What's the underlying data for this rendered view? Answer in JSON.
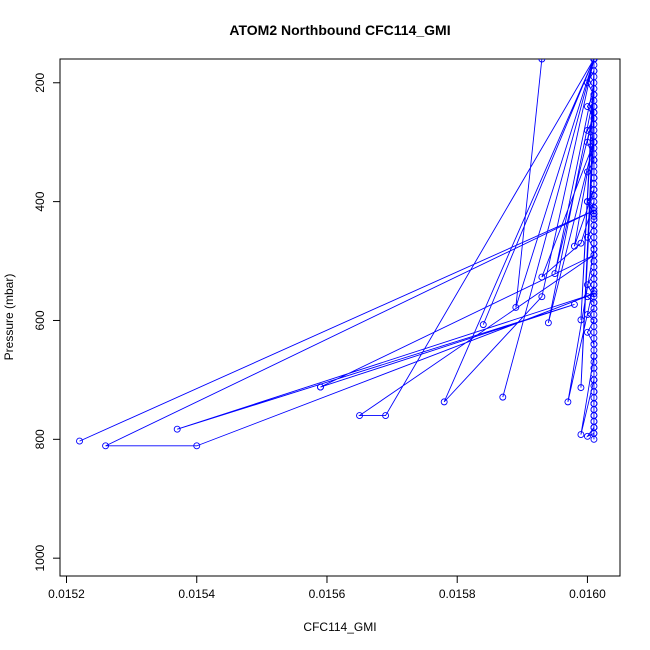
{
  "chart_data": {
    "type": "line",
    "title": "ATOM2 Northbound CFC114_GMI",
    "xlabel": "CFC114_GMI",
    "ylabel": "Pressure (mbar)",
    "xlim": [
      0.01519,
      0.01605
    ],
    "ylim": [
      1030,
      160
    ],
    "y_reversed": true,
    "grid": false,
    "legend": "none",
    "series_color": "#0000ff",
    "marker": "open-circle",
    "xticks": [
      0.0152,
      0.0154,
      0.0156,
      0.0158,
      0.016
    ],
    "xtick_labels": [
      "0.0152",
      "0.0154",
      "0.0156",
      "0.0158",
      "0.0160"
    ],
    "yticks": [
      200,
      400,
      600,
      800,
      1000
    ],
    "ytick_labels": [
      "200",
      "400",
      "600",
      "800",
      "1000"
    ],
    "series": [
      {
        "x": [
          0.01601,
          0.01601,
          0.016,
          0.01601,
          0.01601,
          0.01601,
          0.016,
          0.01601,
          0.01601,
          0.01601,
          0.01601,
          0.01601,
          0.01601,
          0.01601,
          0.01601,
          0.01601,
          0.01601,
          0.01601,
          0.01601,
          0.01601,
          0.01601,
          0.01601,
          0.01601,
          0.016,
          0.01601,
          0.01601,
          0.016,
          0.01601,
          0.016,
          0.01601,
          0.01601,
          0.01601,
          0.01601,
          0.01601,
          0.01601,
          0.01601,
          0.01601,
          0.01601,
          0.01601,
          0.01601,
          0.016,
          0.01601,
          0.01601,
          0.01601,
          0.01601,
          0.01601,
          0.01601,
          0.01601,
          0.01601,
          0.01601,
          0.01601,
          0.01601,
          0.01601,
          0.016,
          0.01601,
          0.01601,
          0.01601,
          0.016,
          0.01601,
          0.01601,
          0.016,
          0.01601,
          0.01601,
          0.01601,
          0.01601,
          0.01601,
          0.016,
          0.01601,
          0.016,
          0.01601,
          0.016,
          0.01601,
          0.01601,
          0.01601,
          0.01601,
          0.01601,
          0.01601,
          0.01601,
          0.01601,
          0.01601,
          0.01601,
          0.01601,
          0.016,
          0.01598,
          0.01601,
          0.01601,
          0.01599,
          0.01593,
          0.01601,
          0.01601,
          0.01595,
          0.01601,
          0.01599,
          0.01601,
          0.01601,
          0.01601,
          0.01594,
          0.01601,
          0.01601,
          0.01601,
          0.01599,
          0.01601,
          0.01601,
          0.01601,
          0.01601,
          0.01601,
          0.01597,
          0.01601,
          0.01601,
          0.01601,
          0.01599,
          0.01601,
          0.01601,
          0.01601,
          0.01601,
          0.01601,
          0.01601,
          0.01601,
          0.01601,
          0.01601,
          0.01601,
          0.01601,
          0.01601,
          0.01601,
          0.01601,
          0.01601,
          0.01601,
          0.01601,
          0.01601,
          0.01601,
          0.01601,
          0.01601,
          0.01601,
          0.01601,
          0.01601,
          0.01601,
          0.01601,
          0.01601,
          0.01601,
          0.01601,
          0.01601
        ],
        "y": [
          160,
          240,
          300,
          330,
          360,
          390,
          400,
          410,
          420,
          425,
          430,
          440,
          450,
          460,
          470,
          480,
          490,
          500,
          510,
          520,
          530,
          540,
          550,
          560,
          570,
          580,
          590,
          600,
          620,
          640,
          660,
          680,
          700,
          720,
          740,
          750,
          760,
          770,
          780,
          790,
          795,
          780,
          760,
          740,
          720,
          700,
          680,
          660,
          640,
          620,
          600,
          580,
          560,
          540,
          520,
          500,
          480,
          460,
          440,
          420,
          400,
          380,
          360,
          340,
          320,
          300,
          280,
          260,
          240,
          220,
          200,
          180,
          160,
          170,
          190,
          210,
          230,
          250,
          270,
          290,
          310,
          330,
          350,
          475,
          380,
          400,
          470,
          527,
          300,
          250,
          521,
          200,
          599,
          180,
          240,
          300,
          604,
          220,
          260,
          280,
          713,
          240,
          300,
          360,
          420,
          480,
          737,
          540,
          600,
          660,
          792,
          700,
          720,
          740,
          760,
          780,
          800,
          790,
          770,
          750,
          730,
          710,
          690,
          670,
          650,
          630,
          610,
          590,
          570,
          550,
          530,
          510,
          490,
          470,
          450,
          430,
          410,
          390,
          370,
          350,
          330
        ]
      },
      {
        "x": [
          0.01522,
          0.01601,
          0.01526,
          0.0154,
          0.01601,
          0.01537,
          0.01598,
          0.01559,
          0.01559,
          0.01601,
          0.01565,
          0.01569,
          0.01601,
          0.01578,
          0.01593,
          0.01601,
          0.01584,
          0.01601,
          0.01587,
          0.01601,
          0.01589,
          0.01593
        ],
        "y": [
          803,
          415,
          811,
          811,
          555,
          783,
          573,
          712,
          712,
          490,
          760,
          760,
          160,
          737,
          560,
          160,
          607,
          160,
          729,
          160,
          578,
          160
        ]
      }
    ]
  }
}
